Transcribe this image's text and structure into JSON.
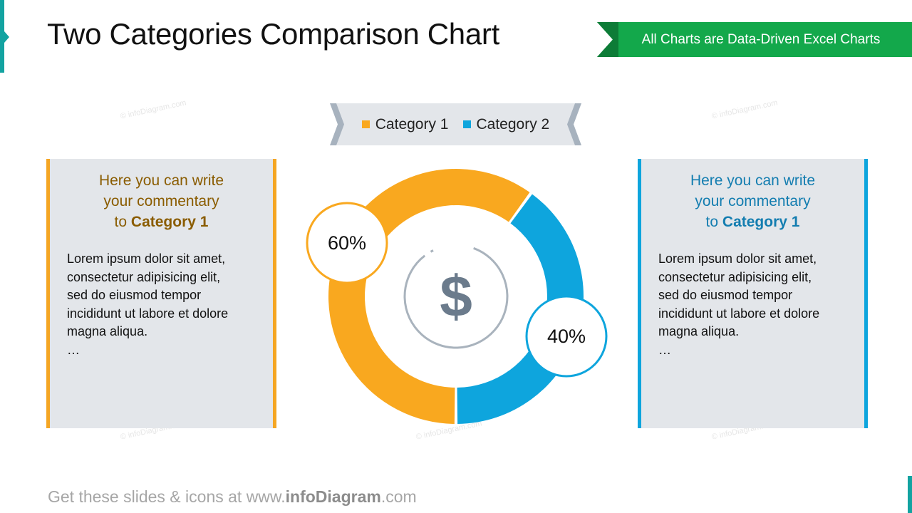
{
  "title": "Two Categories Comparison Chart",
  "banner": "All Charts are Data-Driven Excel Charts",
  "watermark": "© infoDiagram.com",
  "colors": {
    "category1": "#f9a81f",
    "category2": "#0ea5dd",
    "title_accent": "#13a3a1",
    "banner": "#13a84b",
    "panel_bg": "#e3e6ea",
    "icon": "#6b7b8c"
  },
  "chart_data": {
    "type": "pie",
    "variant": "donut",
    "categories": [
      "Category 1",
      "Category 2"
    ],
    "values": [
      60,
      40
    ],
    "value_labels": [
      "60%",
      "40%"
    ],
    "legend_position": "top",
    "center_icon": "dollar-icon"
  },
  "center_glyph": "$",
  "panels": {
    "left": {
      "heading_line1": "Here you can write",
      "heading_line2": "your commentary",
      "heading_prefix": "to",
      "heading_strong": "Category 1",
      "body_lines": [
        "Lorem ipsum dolor sit amet,",
        "consectetur adipisicing elit,",
        "sed do eiusmod tempor",
        "incididunt ut labore et dolore",
        "magna aliqua."
      ],
      "ellipsis": "…"
    },
    "right": {
      "heading_line1": "Here you can write",
      "heading_line2": "your commentary",
      "heading_prefix": "to",
      "heading_strong": "Category 1",
      "body_lines": [
        "Lorem ipsum dolor sit amet,",
        "consectetur adipisicing elit,",
        "sed do eiusmod tempor",
        "incididunt ut labore et dolore",
        "magna aliqua."
      ],
      "ellipsis": "…"
    }
  },
  "footer": {
    "prefix": "Get these slides & icons at www.",
    "brand": "infoDiagram",
    "suffix": ".com"
  }
}
